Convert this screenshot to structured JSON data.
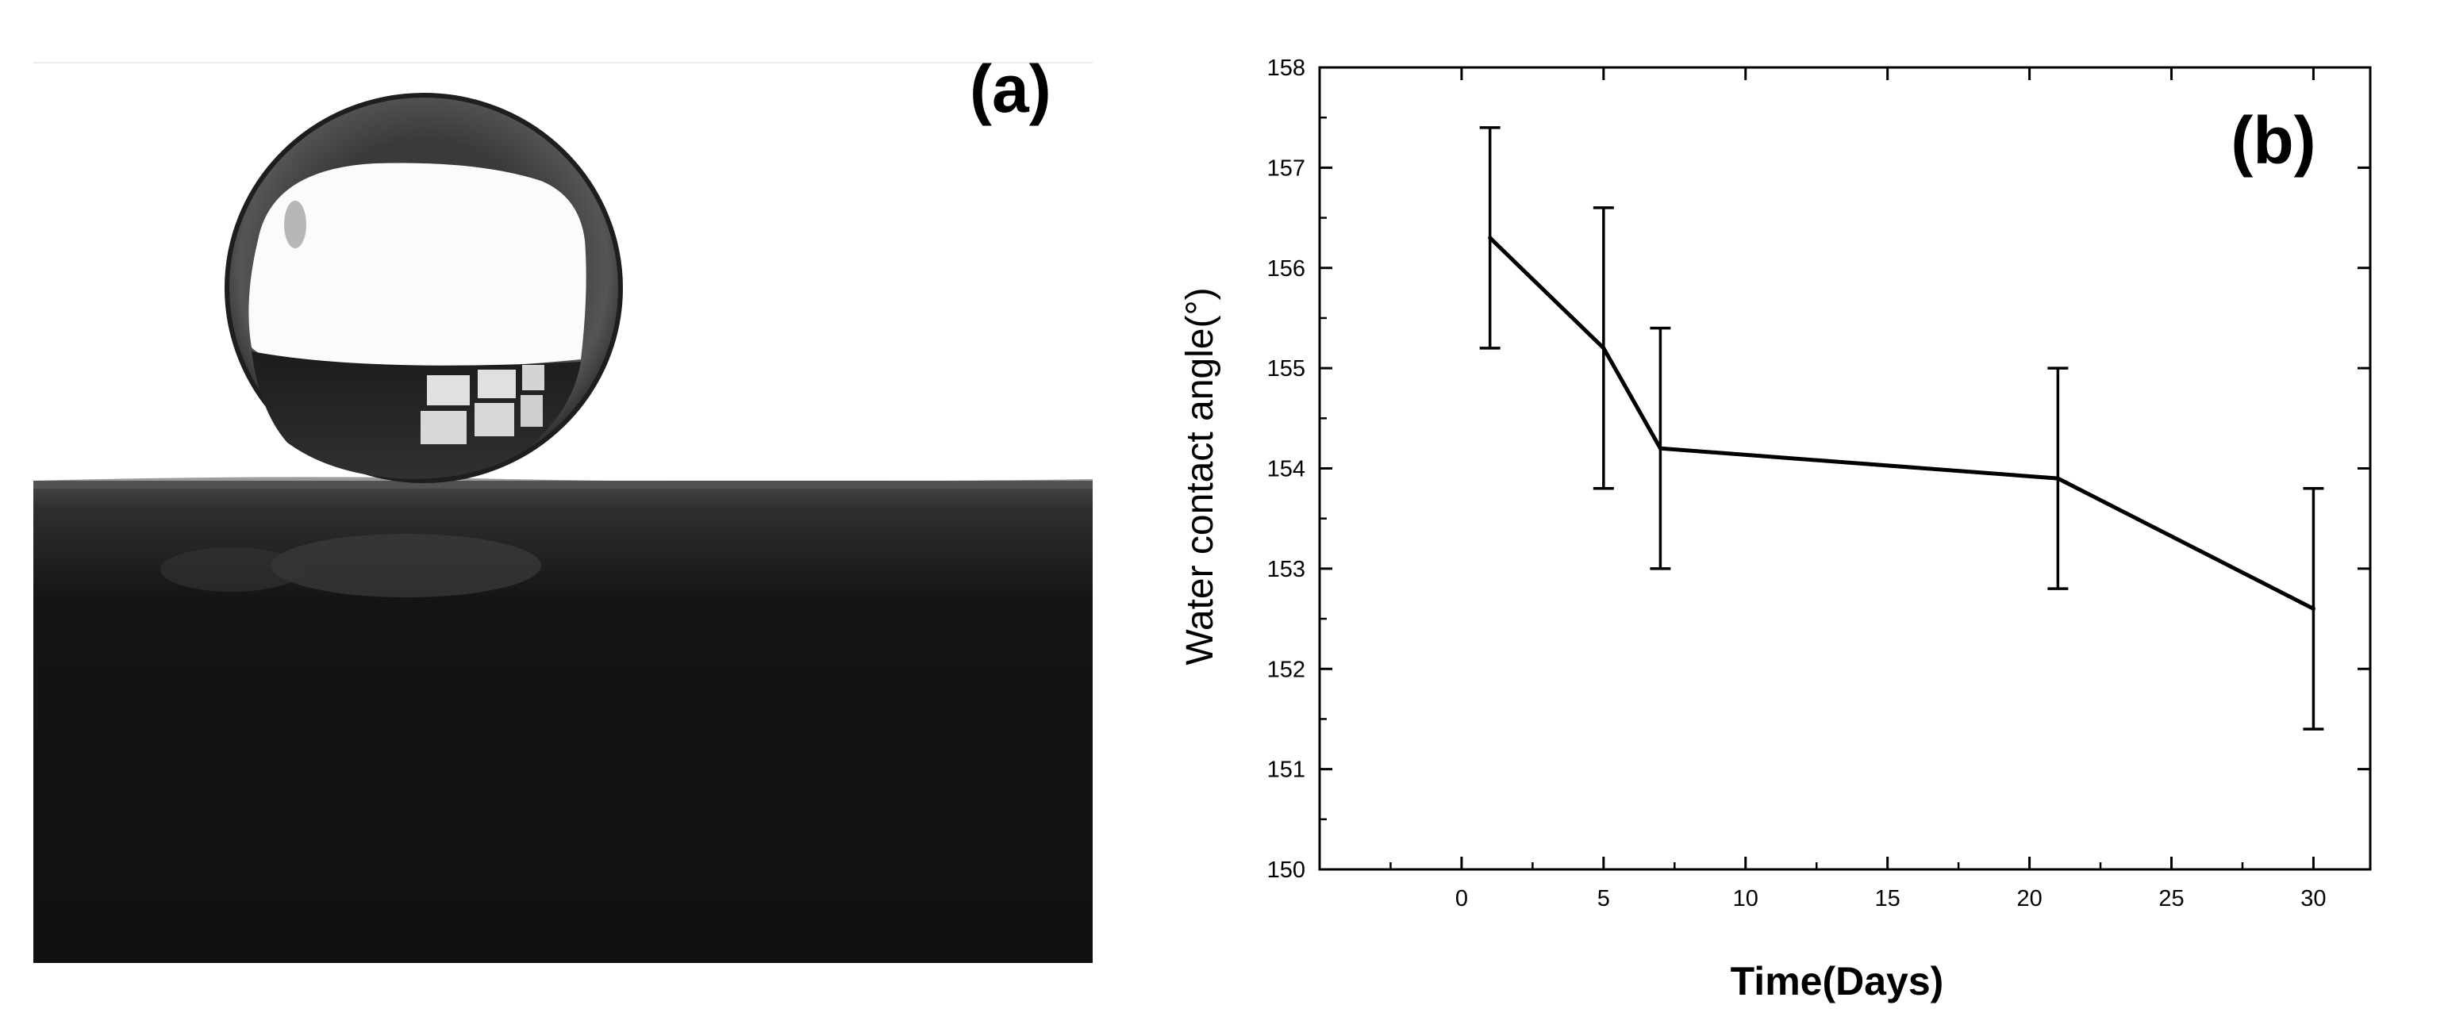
{
  "panels": {
    "a_label": "(a)",
    "b_label": "(b)"
  },
  "photo": {
    "icon": "water-droplet-photo-icon"
  },
  "chart_data": {
    "type": "line",
    "title": "",
    "xlabel": "Time(Days)",
    "ylabel": "Water contact angle(°)",
    "xlim": [
      -5,
      32
    ],
    "ylim": [
      150,
      158
    ],
    "xticks": [
      0,
      5,
      10,
      15,
      20,
      25,
      30
    ],
    "yticks": [
      150,
      151,
      152,
      153,
      154,
      155,
      156,
      157,
      158
    ],
    "grid": false,
    "legend": "none",
    "series": [
      {
        "x": [
          1,
          5,
          7,
          21,
          30
        ],
        "y": [
          156.3,
          155.2,
          154.2,
          153.9,
          152.6
        ],
        "yerr_low": [
          155.2,
          153.8,
          153.0,
          152.8,
          151.4
        ],
        "yerr_high": [
          157.4,
          156.6,
          155.4,
          155.0,
          153.8
        ],
        "color": "#000000"
      }
    ]
  }
}
